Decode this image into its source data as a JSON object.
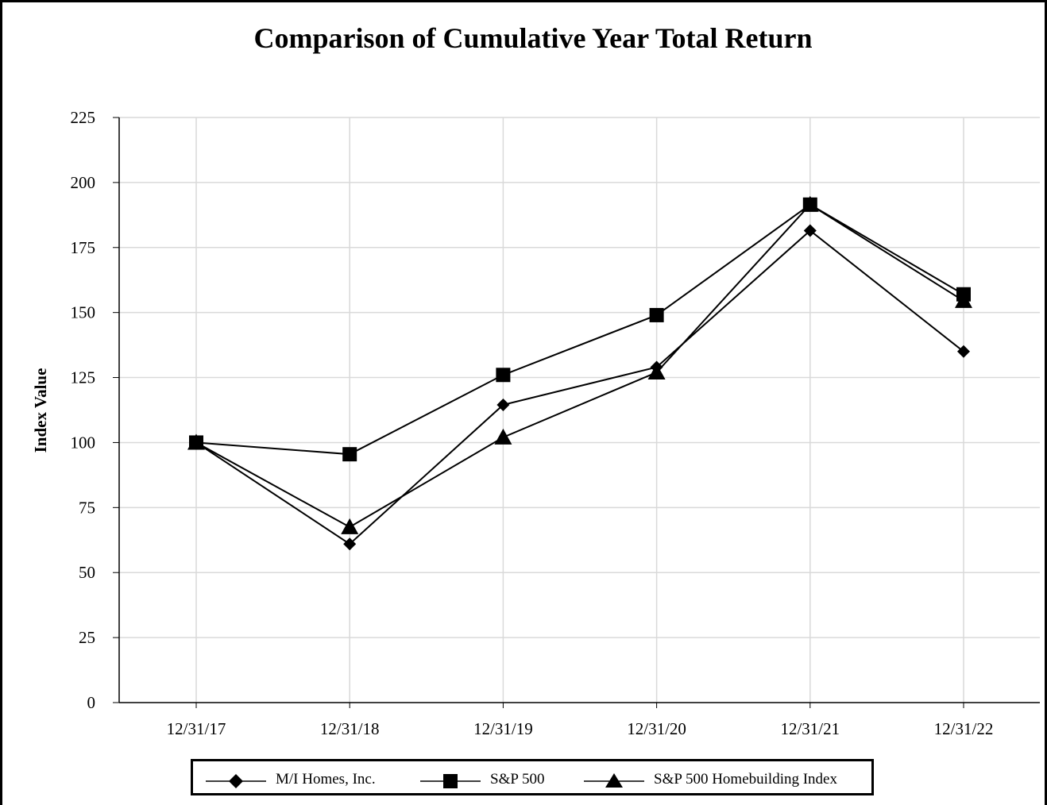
{
  "chart_data": {
    "type": "line",
    "title": "Comparison of Cumulative Year Total Return",
    "xlabel": "",
    "ylabel": "Index Value",
    "categories": [
      "12/31/17",
      "12/31/18",
      "12/31/19",
      "12/31/20",
      "12/31/21",
      "12/31/22"
    ],
    "ylim": [
      0,
      225
    ],
    "yticks": [
      0,
      25,
      50,
      75,
      100,
      125,
      150,
      175,
      200,
      225
    ],
    "grid": true,
    "legend_position": "bottom",
    "series": [
      {
        "name": "M/I Homes, Inc.",
        "marker": "diamond",
        "color": "#000000",
        "values": [
          100,
          61,
          114.5,
          129,
          181.5,
          135
        ]
      },
      {
        "name": "S&P 500",
        "marker": "square",
        "color": "#000000",
        "values": [
          100,
          95.5,
          126,
          149,
          191.5,
          157
        ]
      },
      {
        "name": "S&P 500 Homebuilding Index",
        "marker": "triangle",
        "color": "#000000",
        "values": [
          100,
          67.5,
          102,
          127,
          191.5,
          154.5
        ]
      }
    ]
  }
}
